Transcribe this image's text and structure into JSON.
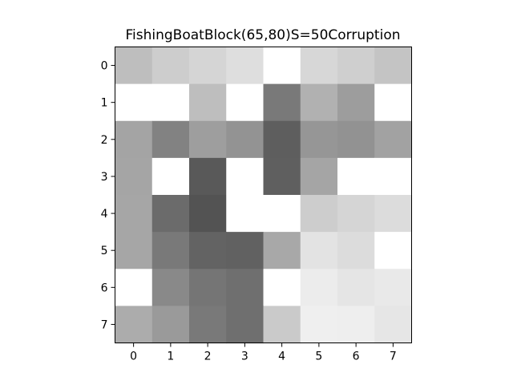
{
  "chart_data": {
    "type": "heatmap",
    "title": "FishingBoatBlock(65,80)S=50Corruption",
    "xlabel": "",
    "ylabel": "",
    "colormap": "gray",
    "value_range": [
      0,
      255
    ],
    "x_ticks": [
      "0",
      "1",
      "2",
      "3",
      "4",
      "5",
      "6",
      "7"
    ],
    "y_ticks": [
      "0",
      "1",
      "2",
      "3",
      "4",
      "5",
      "6",
      "7"
    ],
    "grid": false,
    "values": [
      [
        190,
        205,
        213,
        222,
        255,
        215,
        207,
        196
      ],
      [
        255,
        255,
        190,
        255,
        121,
        177,
        157,
        255
      ],
      [
        164,
        130,
        158,
        147,
        94,
        150,
        146,
        162
      ],
      [
        165,
        255,
        89,
        255,
        95,
        165,
        255,
        255
      ],
      [
        166,
        107,
        83,
        255,
        255,
        205,
        213,
        220
      ],
      [
        166,
        121,
        99,
        97,
        168,
        227,
        220,
        255
      ],
      [
        255,
        137,
        117,
        111,
        255,
        236,
        229,
        233
      ],
      [
        172,
        154,
        121,
        111,
        202,
        239,
        238,
        230
      ]
    ]
  }
}
